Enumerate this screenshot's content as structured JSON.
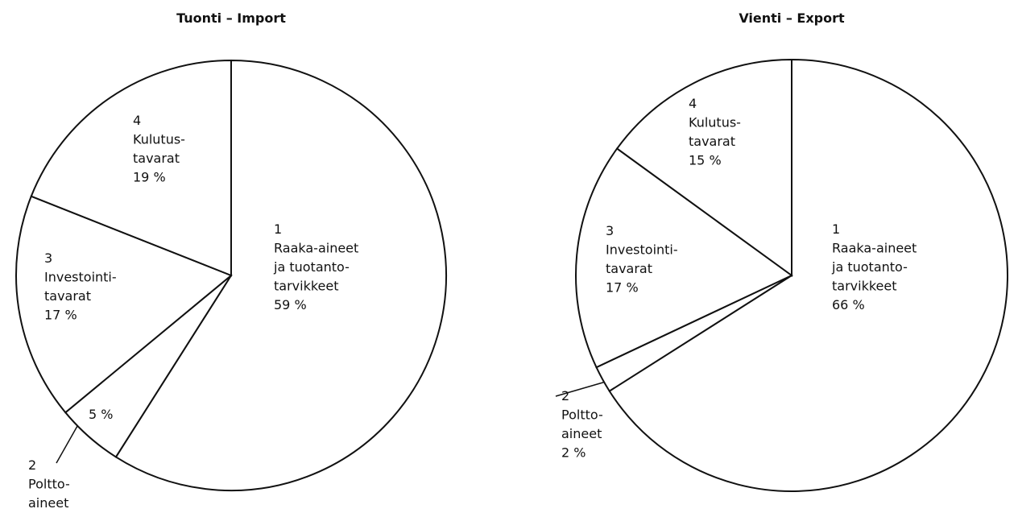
{
  "chart_data": [
    {
      "type": "pie",
      "title": "Tuonti – Import",
      "numbers": [
        "1",
        "2",
        "3",
        "4"
      ],
      "categories": [
        [
          "Raaka-aineet",
          "ja tuotanto-",
          "tarvikkeet"
        ],
        [
          "Poltto-",
          "aineet"
        ],
        [
          "Investointi-",
          "tavarat"
        ],
        [
          "Kulutus-",
          "tavarat"
        ]
      ],
      "values": [
        59,
        5,
        17,
        19
      ],
      "value_labels": [
        "59 %",
        "5 %",
        "17 %",
        "19 %"
      ]
    },
    {
      "type": "pie",
      "title": "Vienti – Export",
      "numbers": [
        "1",
        "2",
        "3",
        "4"
      ],
      "categories": [
        [
          "Raaka-aineet",
          "ja tuotanto-",
          "tarvikkeet"
        ],
        [
          "Poltto-",
          "aineet"
        ],
        [
          "Investointi-",
          "tavarat"
        ],
        [
          "Kulutus-",
          "tavarat"
        ]
      ],
      "values": [
        66,
        2,
        17,
        15
      ],
      "value_labels": [
        "66 %",
        "2 %",
        "17 %",
        "15 %"
      ]
    }
  ]
}
